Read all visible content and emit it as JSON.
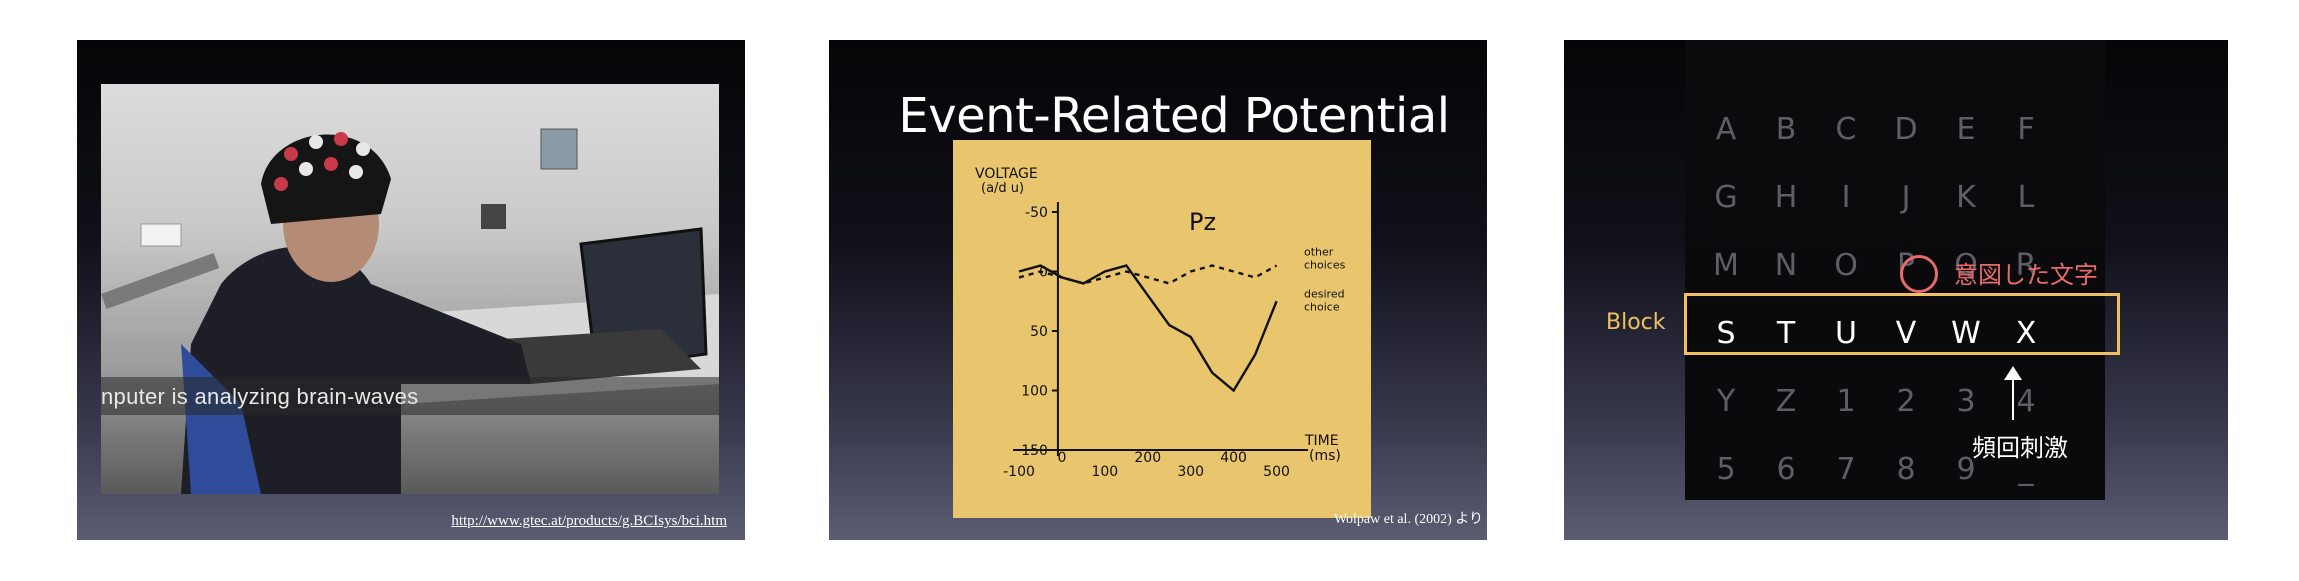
{
  "slide1": {
    "caption": "nputer is analyzing brain-waves",
    "url": "http://www.gtec.at/products/g.BCIsys/bci.htm"
  },
  "slide2": {
    "title": "Event-Related Potential",
    "citation": "Wolpaw et al. (2002) より",
    "chart_data": {
      "type": "line",
      "title": "Pz",
      "ylabel": "VOLTAGE (a/d u)",
      "xlabel": "TIME (ms)",
      "y_ticks": [
        "-50",
        "0",
        "50",
        "100",
        "150"
      ],
      "x_ticks": [
        "-100",
        "0",
        "100",
        "200",
        "300",
        "400",
        "500"
      ],
      "ylim": [
        -50,
        150
      ],
      "xlim": [
        -100,
        550
      ],
      "y_inverted": true,
      "series": [
        {
          "name": "other choices",
          "style": "dashed",
          "x": [
            -100,
            -50,
            0,
            50,
            100,
            150,
            200,
            250,
            300,
            350,
            400,
            450,
            500
          ],
          "y": [
            5,
            0,
            5,
            10,
            5,
            0,
            5,
            10,
            0,
            -5,
            0,
            5,
            -5
          ]
        },
        {
          "name": "desired choice",
          "style": "solid",
          "x": [
            -100,
            -50,
            0,
            50,
            100,
            150,
            200,
            250,
            300,
            350,
            400,
            450,
            500
          ],
          "y": [
            0,
            -5,
            5,
            10,
            0,
            -5,
            20,
            45,
            55,
            85,
            100,
            70,
            25
          ]
        }
      ]
    }
  },
  "slide3": {
    "grid": [
      [
        "A",
        "B",
        "C",
        "D",
        "E",
        "F"
      ],
      [
        "G",
        "H",
        "I",
        "J",
        "K",
        "L"
      ],
      [
        "M",
        "N",
        "O",
        "P",
        "Q",
        "R"
      ],
      [
        "S",
        "T",
        "U",
        "V",
        "W",
        "X"
      ],
      [
        "Y",
        "Z",
        "1",
        "2",
        "3",
        "4"
      ],
      [
        "5",
        "6",
        "7",
        "8",
        "9",
        "_"
      ]
    ],
    "highlighted_row": 3,
    "target_letter": "P",
    "block_label": "Block",
    "intent_label": "意図した文字",
    "stimulus_label": "頻回刺激",
    "colors": {
      "block": "#f0c060",
      "target": "#e86a6a"
    }
  }
}
